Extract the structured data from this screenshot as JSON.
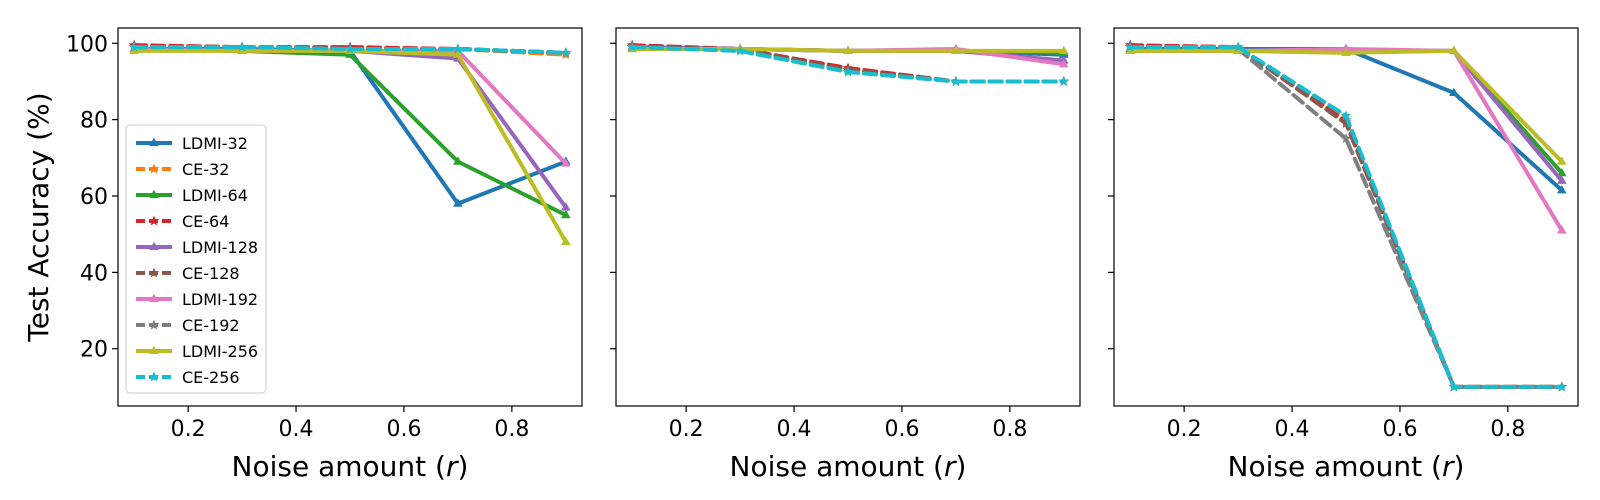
{
  "chart_data": {
    "type": "line",
    "ylabel": "Test Accuracy (%)",
    "xlabel_prefix": "Noise amount (",
    "xlabel_var": "r",
    "xlabel_suffix": ")",
    "xlim": [
      0.07,
      0.93
    ],
    "ylim": [
      5,
      104
    ],
    "xticks": [
      0.2,
      0.4,
      0.6,
      0.8
    ],
    "xtick_labels": [
      "0.2",
      "0.4",
      "0.6",
      "0.8"
    ],
    "yticks": [
      20,
      40,
      60,
      80,
      100
    ],
    "ytick_labels": [
      "20",
      "40",
      "60",
      "80",
      "100"
    ],
    "grid": false,
    "sharey": true,
    "legend_placement": "lower-left of first panel",
    "x": [
      0.1,
      0.3,
      0.5,
      0.7,
      0.9
    ],
    "series_styles": [
      {
        "name": "LDMI-32",
        "color": "#1f77b4",
        "dashed": false,
        "marker": "triangle"
      },
      {
        "name": "CE-32",
        "color": "#ff7f0e",
        "dashed": true,
        "marker": "star"
      },
      {
        "name": "LDMI-64",
        "color": "#2ca02c",
        "dashed": false,
        "marker": "triangle"
      },
      {
        "name": "CE-64",
        "color": "#d62728",
        "dashed": true,
        "marker": "star"
      },
      {
        "name": "LDMI-128",
        "color": "#9467bd",
        "dashed": false,
        "marker": "triangle"
      },
      {
        "name": "CE-128",
        "color": "#8c564b",
        "dashed": true,
        "marker": "star"
      },
      {
        "name": "LDMI-192",
        "color": "#e377c2",
        "dashed": false,
        "marker": "triangle"
      },
      {
        "name": "CE-192",
        "color": "#7f7f7f",
        "dashed": true,
        "marker": "star"
      },
      {
        "name": "LDMI-256",
        "color": "#bcbd22",
        "dashed": false,
        "marker": "triangle"
      },
      {
        "name": "CE-256",
        "color": "#17becf",
        "dashed": true,
        "marker": "star"
      }
    ],
    "panels": [
      {
        "series": [
          {
            "name": "LDMI-32",
            "values": [
              98.5,
              98.5,
              98,
              58,
              69
            ]
          },
          {
            "name": "CE-32",
            "values": [
              99,
              98.5,
              98.5,
              98.5,
              97
            ]
          },
          {
            "name": "LDMI-64",
            "values": [
              98.5,
              98,
              97,
              69,
              55
            ]
          },
          {
            "name": "CE-64",
            "values": [
              99.5,
              99,
              99,
              98.5,
              97.5
            ]
          },
          {
            "name": "LDMI-128",
            "values": [
              98.5,
              98,
              98,
              96,
              57
            ]
          },
          {
            "name": "CE-128",
            "values": [
              99,
              99,
              98.5,
              98.5,
              97.5
            ]
          },
          {
            "name": "LDMI-192",
            "values": [
              98.5,
              98,
              98,
              98,
              68.5
            ]
          },
          {
            "name": "CE-192",
            "values": [
              99,
              98.5,
              98.5,
              98.5,
              97.5
            ]
          },
          {
            "name": "LDMI-256",
            "values": [
              98,
              98,
              98,
              97,
              48
            ]
          },
          {
            "name": "CE-256",
            "values": [
              99,
              99,
              98.5,
              98.5,
              97.5
            ]
          }
        ]
      },
      {
        "series": [
          {
            "name": "LDMI-32",
            "values": [
              99,
              98.5,
              98,
              98,
              97
            ]
          },
          {
            "name": "CE-32",
            "values": [
              99,
              98.5,
              93,
              90,
              90
            ]
          },
          {
            "name": "LDMI-64",
            "values": [
              98.5,
              98.5,
              98,
              98,
              97.5
            ]
          },
          {
            "name": "CE-64",
            "values": [
              99.5,
              98.5,
              93.5,
              90,
              90
            ]
          },
          {
            "name": "LDMI-128",
            "values": [
              99,
              98.5,
              98,
              98,
              95.5
            ]
          },
          {
            "name": "CE-128",
            "values": [
              99,
              98.5,
              93,
              90,
              90
            ]
          },
          {
            "name": "LDMI-192",
            "values": [
              98.5,
              98.5,
              98,
              98.5,
              94.5
            ]
          },
          {
            "name": "CE-192",
            "values": [
              99,
              98,
              92.5,
              90,
              90
            ]
          },
          {
            "name": "LDMI-256",
            "values": [
              98.5,
              98.5,
              98,
              98,
              98
            ]
          },
          {
            "name": "CE-256",
            "values": [
              99,
              98,
              92.5,
              90,
              90
            ]
          }
        ]
      },
      {
        "series": [
          {
            "name": "LDMI-32",
            "values": [
              98.5,
              98.5,
              98.5,
              87,
              61.5
            ]
          },
          {
            "name": "CE-32",
            "values": [
              99,
              99,
              80,
              10,
              10
            ]
          },
          {
            "name": "LDMI-64",
            "values": [
              98.5,
              98,
              98,
              98,
              66
            ]
          },
          {
            "name": "CE-64",
            "values": [
              99.5,
              99,
              79.5,
              10,
              10
            ]
          },
          {
            "name": "LDMI-128",
            "values": [
              98,
              98,
              98,
              98,
              64
            ]
          },
          {
            "name": "CE-128",
            "values": [
              99,
              99,
              79,
              10,
              10
            ]
          },
          {
            "name": "LDMI-192",
            "values": [
              98,
              98,
              98.5,
              98,
              51
            ]
          },
          {
            "name": "CE-192",
            "values": [
              99,
              98.5,
              75,
              10,
              10
            ]
          },
          {
            "name": "LDMI-256",
            "values": [
              98,
              98,
              97.5,
              98,
              69
            ]
          },
          {
            "name": "CE-256",
            "values": [
              99,
              99,
              81,
              10,
              10
            ]
          }
        ]
      }
    ]
  }
}
